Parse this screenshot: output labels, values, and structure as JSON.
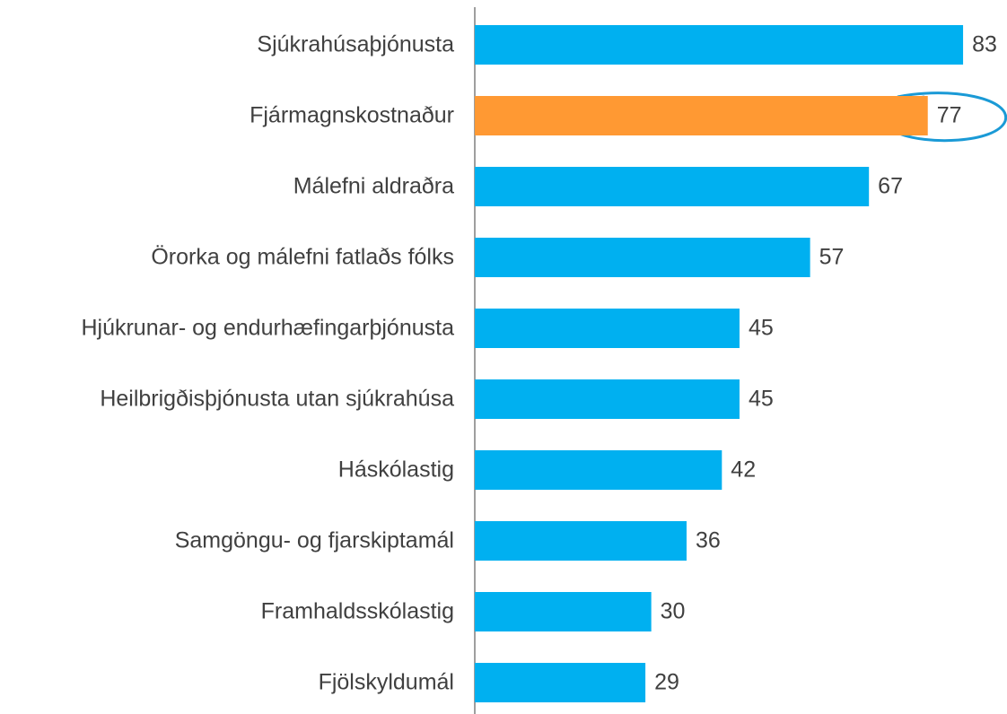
{
  "chart_data": {
    "type": "bar",
    "orientation": "horizontal",
    "categories": [
      "Sjúkrahúsaþjónusta",
      "Fjármagnskostnaður",
      "Málefni aldraðra",
      "Örorka og málefni fatlaðs fólks",
      "Hjúkrunar- og endurhæfingarþjónusta",
      "Heilbrigðisþjónusta utan sjúkrahúsa",
      "Háskólastig",
      "Samgöngu- og fjarskiptamál",
      "Framhaldsskólastig",
      "Fjölskyldumál"
    ],
    "values": [
      83,
      77,
      67,
      57,
      45,
      45,
      42,
      36,
      30,
      29
    ],
    "colors": [
      "#00b0f0",
      "#ff9933",
      "#00b0f0",
      "#00b0f0",
      "#00b0f0",
      "#00b0f0",
      "#00b0f0",
      "#00b0f0",
      "#00b0f0",
      "#00b0f0"
    ]
  }
}
